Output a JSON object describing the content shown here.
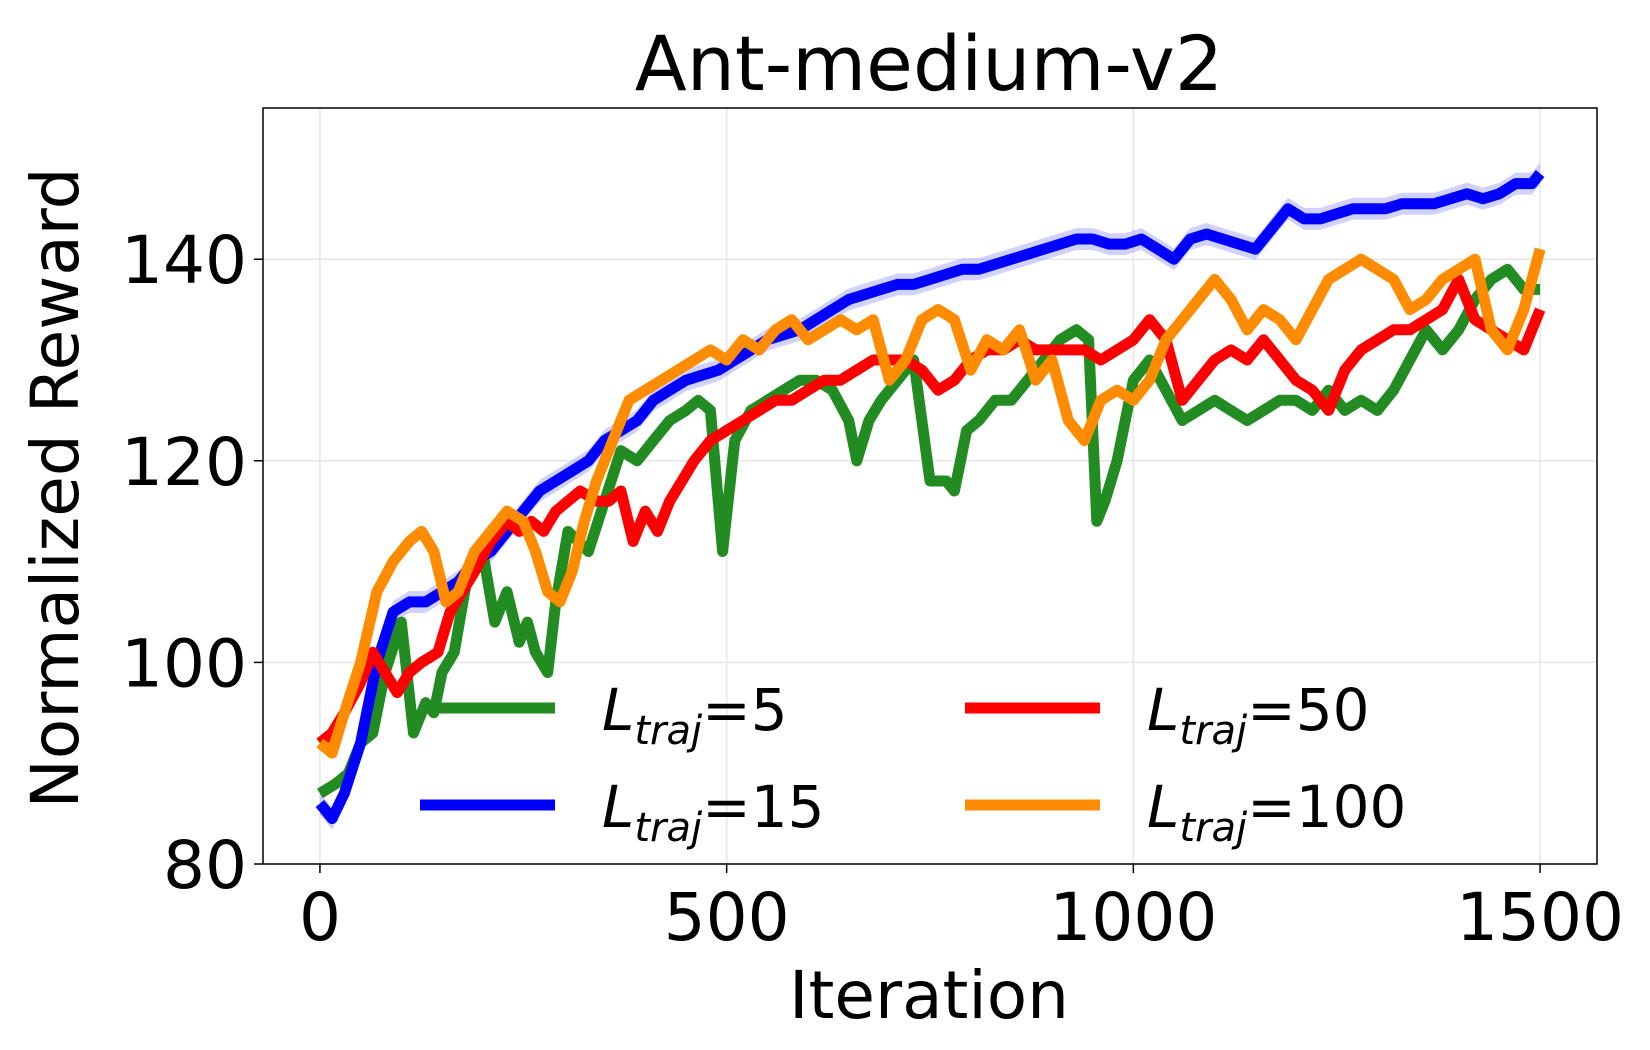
{
  "chart_data": {
    "type": "line",
    "title": "Ant-medium-v2",
    "xlabel": "Iteration",
    "ylabel": "Normalized Reward",
    "xlim": [
      -70,
      1570
    ],
    "ylim": [
      80,
      155
    ],
    "xticks": [
      0,
      500,
      1000,
      1500
    ],
    "yticks": [
      80,
      100,
      120,
      140
    ],
    "grid": true,
    "legend_position": "lower-center, 2 columns",
    "series": [
      {
        "name": "L_traj=5",
        "label_main": "L",
        "label_sub": "traj",
        "label_suffix": "=5",
        "color": "#228b22",
        "x": [
          0,
          20,
          35,
          50,
          65,
          80,
          100,
          115,
          130,
          140,
          150,
          165,
          180,
          200,
          215,
          230,
          245,
          255,
          265,
          280,
          290,
          305,
          330,
          350,
          370,
          390,
          410,
          430,
          450,
          465,
          480,
          495,
          510,
          530,
          550,
          570,
          590,
          610,
          630,
          650,
          660,
          675,
          690,
          710,
          730,
          750,
          770,
          780,
          795,
          810,
          830,
          850,
          870,
          890,
          910,
          930,
          945,
          955,
          965,
          980,
          1000,
          1020,
          1040,
          1060,
          1080,
          1100,
          1120,
          1140,
          1160,
          1180,
          1200,
          1220,
          1240,
          1260,
          1280,
          1300,
          1320,
          1340,
          1360,
          1380,
          1400,
          1420,
          1440,
          1460,
          1480,
          1500
        ],
        "values": [
          87,
          88,
          89,
          92,
          93,
          99,
          104,
          93,
          96,
          95,
          99,
          101,
          108,
          111,
          104,
          107,
          102,
          104,
          101,
          99,
          106,
          113,
          111,
          116,
          121,
          120,
          122,
          124,
          125,
          126,
          125,
          111,
          122,
          125,
          126,
          127,
          128,
          128,
          127,
          124,
          120,
          124,
          126,
          128,
          130,
          118,
          118,
          117,
          123,
          124,
          126,
          126,
          128,
          130,
          132,
          133,
          132,
          114,
          116,
          120,
          128,
          130,
          127,
          124,
          125,
          126,
          125,
          124,
          125,
          126,
          126,
          125,
          127,
          125,
          126,
          125,
          127,
          130,
          133,
          131,
          133,
          136,
          138,
          139,
          137,
          137
        ]
      },
      {
        "name": "L_traj=15",
        "label_main": "L",
        "label_sub": "traj",
        "label_suffix": "=15",
        "color": "#0000ff",
        "band_color": "#9999ff",
        "x": [
          0,
          15,
          30,
          50,
          70,
          90,
          110,
          130,
          150,
          170,
          190,
          210,
          230,
          250,
          270,
          290,
          310,
          330,
          350,
          370,
          390,
          410,
          430,
          450,
          470,
          490,
          510,
          530,
          550,
          570,
          590,
          610,
          630,
          650,
          670,
          690,
          710,
          730,
          750,
          770,
          790,
          810,
          830,
          850,
          870,
          890,
          910,
          930,
          950,
          970,
          990,
          1010,
          1030,
          1050,
          1070,
          1090,
          1110,
          1130,
          1150,
          1170,
          1190,
          1210,
          1230,
          1250,
          1270,
          1290,
          1310,
          1330,
          1350,
          1370,
          1390,
          1410,
          1430,
          1450,
          1470,
          1490,
          1500
        ],
        "values": [
          86,
          84.5,
          87,
          92,
          100,
          105,
          106,
          106,
          107,
          108,
          110,
          111,
          113,
          115,
          117,
          118,
          119,
          120,
          122,
          123,
          124,
          126,
          127,
          128,
          128.5,
          129,
          130,
          131,
          132,
          132.5,
          133,
          134,
          135,
          136,
          136.5,
          137,
          137.5,
          137.5,
          138,
          138.5,
          139,
          139,
          139.5,
          140,
          140.5,
          141,
          141.5,
          142,
          142,
          141.5,
          141.5,
          142,
          141,
          140,
          142,
          142.5,
          142,
          141.5,
          141,
          143,
          145,
          144,
          144,
          144.5,
          145,
          145,
          145,
          145.5,
          145.5,
          145.5,
          146,
          146.5,
          146,
          146.5,
          147.5,
          147.5,
          148.5
        ]
      },
      {
        "name": "L_traj=50",
        "label_main": "L",
        "label_sub": "traj",
        "label_suffix": "=50",
        "color": "#ff0000",
        "x": [
          0,
          15,
          30,
          50,
          65,
          80,
          95,
          110,
          125,
          145,
          160,
          175,
          190,
          210,
          230,
          245,
          260,
          275,
          290,
          305,
          320,
          340,
          355,
          370,
          385,
          400,
          415,
          430,
          445,
          460,
          480,
          500,
          520,
          540,
          560,
          580,
          600,
          620,
          640,
          660,
          680,
          700,
          720,
          740,
          760,
          780,
          800,
          820,
          840,
          860,
          880,
          900,
          920,
          940,
          960,
          980,
          1000,
          1020,
          1040,
          1060,
          1080,
          1100,
          1120,
          1140,
          1160,
          1180,
          1200,
          1220,
          1240,
          1260,
          1280,
          1300,
          1320,
          1340,
          1360,
          1380,
          1400,
          1420,
          1440,
          1460,
          1480,
          1500
        ],
        "values": [
          92,
          93,
          95,
          98,
          101,
          99,
          97,
          99,
          100,
          101,
          105,
          107,
          109,
          112,
          114,
          113,
          114,
          113,
          115,
          116,
          117,
          116,
          116,
          117,
          112,
          115,
          113,
          116,
          118,
          120,
          122,
          123,
          124,
          125,
          126,
          126,
          127,
          128,
          128,
          129,
          130,
          130,
          130,
          129,
          127,
          128,
          130,
          131,
          131,
          132,
          131,
          131,
          131,
          131,
          130,
          131,
          132,
          134,
          132,
          126,
          128,
          130,
          131,
          130,
          132,
          130,
          128,
          127,
          125,
          129,
          131,
          132,
          133,
          133,
          134,
          135,
          138,
          134,
          133,
          132,
          131,
          135
        ]
      },
      {
        "name": "L_traj=100",
        "label_main": "L",
        "label_sub": "traj",
        "label_suffix": "=100",
        "color": "#ff8c00",
        "x": [
          0,
          15,
          30,
          50,
          70,
          90,
          110,
          125,
          140,
          155,
          170,
          190,
          210,
          230,
          250,
          265,
          280,
          295,
          310,
          325,
          340,
          360,
          380,
          400,
          420,
          440,
          460,
          480,
          500,
          520,
          540,
          560,
          580,
          600,
          620,
          640,
          660,
          680,
          700,
          720,
          740,
          760,
          780,
          800,
          820,
          840,
          860,
          880,
          900,
          920,
          940,
          960,
          980,
          1000,
          1020,
          1040,
          1060,
          1080,
          1100,
          1120,
          1140,
          1160,
          1180,
          1200,
          1220,
          1240,
          1260,
          1280,
          1300,
          1320,
          1340,
          1360,
          1380,
          1400,
          1420,
          1440,
          1460,
          1480,
          1500
        ],
        "values": [
          92,
          91,
          95,
          100,
          107,
          110,
          112,
          113,
          111,
          106,
          107,
          111,
          113,
          115,
          114,
          111,
          107,
          106,
          109,
          114,
          118,
          122,
          126,
          127,
          128,
          129,
          130,
          131,
          130,
          132,
          131,
          133,
          134,
          132,
          133,
          134,
          133,
          134,
          128,
          130,
          134,
          135,
          134,
          129,
          132,
          131,
          133,
          128,
          130,
          124,
          122,
          126,
          127,
          126,
          128,
          132,
          134,
          136,
          138,
          136,
          133,
          135,
          134,
          132,
          135,
          138,
          139,
          140,
          139,
          138,
          135,
          136,
          138,
          139,
          140,
          133,
          131,
          135,
          141
        ]
      }
    ]
  }
}
